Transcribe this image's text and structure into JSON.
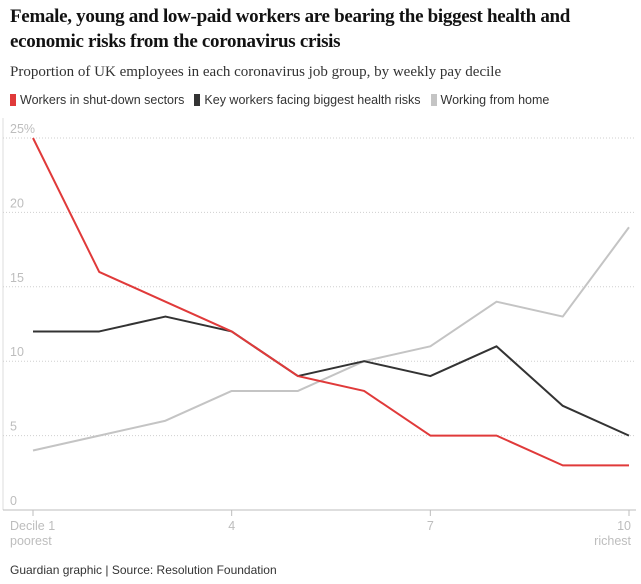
{
  "chart_data": {
    "type": "line",
    "title": "Female, young and low-paid workers are bearing the biggest health and economic risks from the coronavirus crisis",
    "subtitle": "Proportion of UK employees in each coronavirus job group, by weekly pay decile",
    "x": [
      1,
      2,
      3,
      4,
      5,
      6,
      7,
      8,
      9,
      10
    ],
    "x_ticks": [
      {
        "value": 1,
        "label": "Decile 1",
        "sublabel": "poorest"
      },
      {
        "value": 4,
        "label": "4",
        "sublabel": ""
      },
      {
        "value": 7,
        "label": "7",
        "sublabel": ""
      },
      {
        "value": 10,
        "label": "10",
        "sublabel": "richest"
      }
    ],
    "y_ticks": [
      {
        "value": 0,
        "label": "0"
      },
      {
        "value": 5,
        "label": "5"
      },
      {
        "value": 10,
        "label": "10"
      },
      {
        "value": 15,
        "label": "15"
      },
      {
        "value": 20,
        "label": "20"
      },
      {
        "value": 25,
        "label": "25%"
      }
    ],
    "ylim": [
      0,
      25
    ],
    "xlim": [
      1,
      10
    ],
    "grid": true,
    "legend_placement": "top",
    "series": [
      {
        "name": "Workers in shut-down sectors",
        "color": "#e03a3a",
        "values": [
          25,
          16,
          14,
          12,
          9,
          8,
          5,
          5,
          3,
          3
        ]
      },
      {
        "name": "Key workers facing biggest health risks",
        "color": "#333333",
        "values": [
          12,
          12,
          13,
          12,
          9,
          10,
          9,
          11,
          7,
          5
        ]
      },
      {
        "name": "Working from home",
        "color": "#c4c4c4",
        "values": [
          4,
          5,
          6,
          8,
          8,
          10,
          11,
          14,
          13,
          19
        ]
      }
    ],
    "source": "Guardian graphic | Source: Resolution Foundation"
  }
}
